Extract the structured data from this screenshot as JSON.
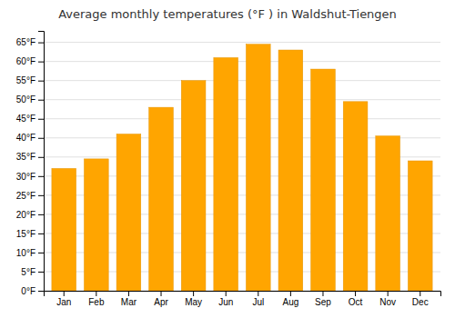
{
  "chart_data": {
    "type": "bar",
    "title": "Average monthly temperatures (°F ) in Waldshut-Tiengen",
    "categories": [
      "Jan",
      "Feb",
      "Mar",
      "Apr",
      "May",
      "Jun",
      "Jul",
      "Aug",
      "Sep",
      "Oct",
      "Nov",
      "Dec"
    ],
    "values": [
      32,
      34.5,
      41,
      48,
      55,
      61,
      64.5,
      63,
      58,
      49.5,
      40.5,
      34
    ],
    "color": "#FFA500",
    "ylim": [
      0,
      68
    ],
    "yticks": [
      {
        "value": 0,
        "label": "0°F"
      },
      {
        "value": 5,
        "label": "5°F"
      },
      {
        "value": 10,
        "label": "10°F"
      },
      {
        "value": 15,
        "label": "15°F"
      },
      {
        "value": 20,
        "label": "20°F"
      },
      {
        "value": 25,
        "label": "25°F"
      },
      {
        "value": 30,
        "label": "30°F"
      },
      {
        "value": 35,
        "label": "35°F"
      },
      {
        "value": 40,
        "label": "40°F"
      },
      {
        "value": 45,
        "label": "45°F"
      },
      {
        "value": 50,
        "label": "50°F"
      },
      {
        "value": 55,
        "label": "55°F"
      },
      {
        "value": 60,
        "label": "60°F"
      },
      {
        "value": 65,
        "label": "65°F"
      }
    ],
    "grid": true
  }
}
